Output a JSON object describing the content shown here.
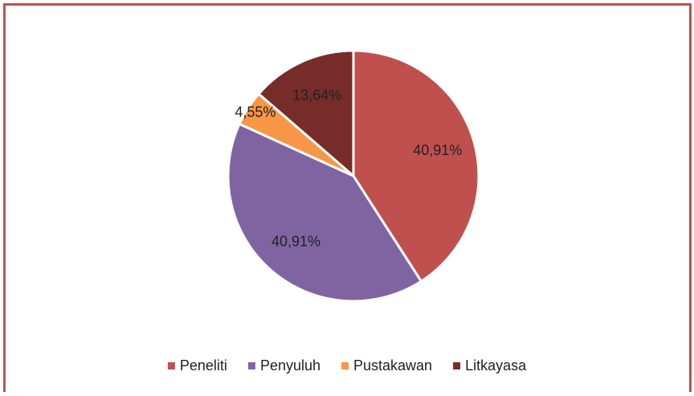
{
  "chart_data": {
    "type": "pie",
    "categories": [
      "Peneliti",
      "Penyuluh",
      "Pustakawan",
      "Litkayasa"
    ],
    "values": [
      40.91,
      40.91,
      4.55,
      13.64
    ],
    "value_labels": [
      "40,91%",
      "40,91%",
      "4,55%",
      "13,64%"
    ],
    "colors": [
      "#c0504d",
      "#8064a2",
      "#f79646",
      "#772c2a"
    ],
    "legend": "bottom"
  }
}
